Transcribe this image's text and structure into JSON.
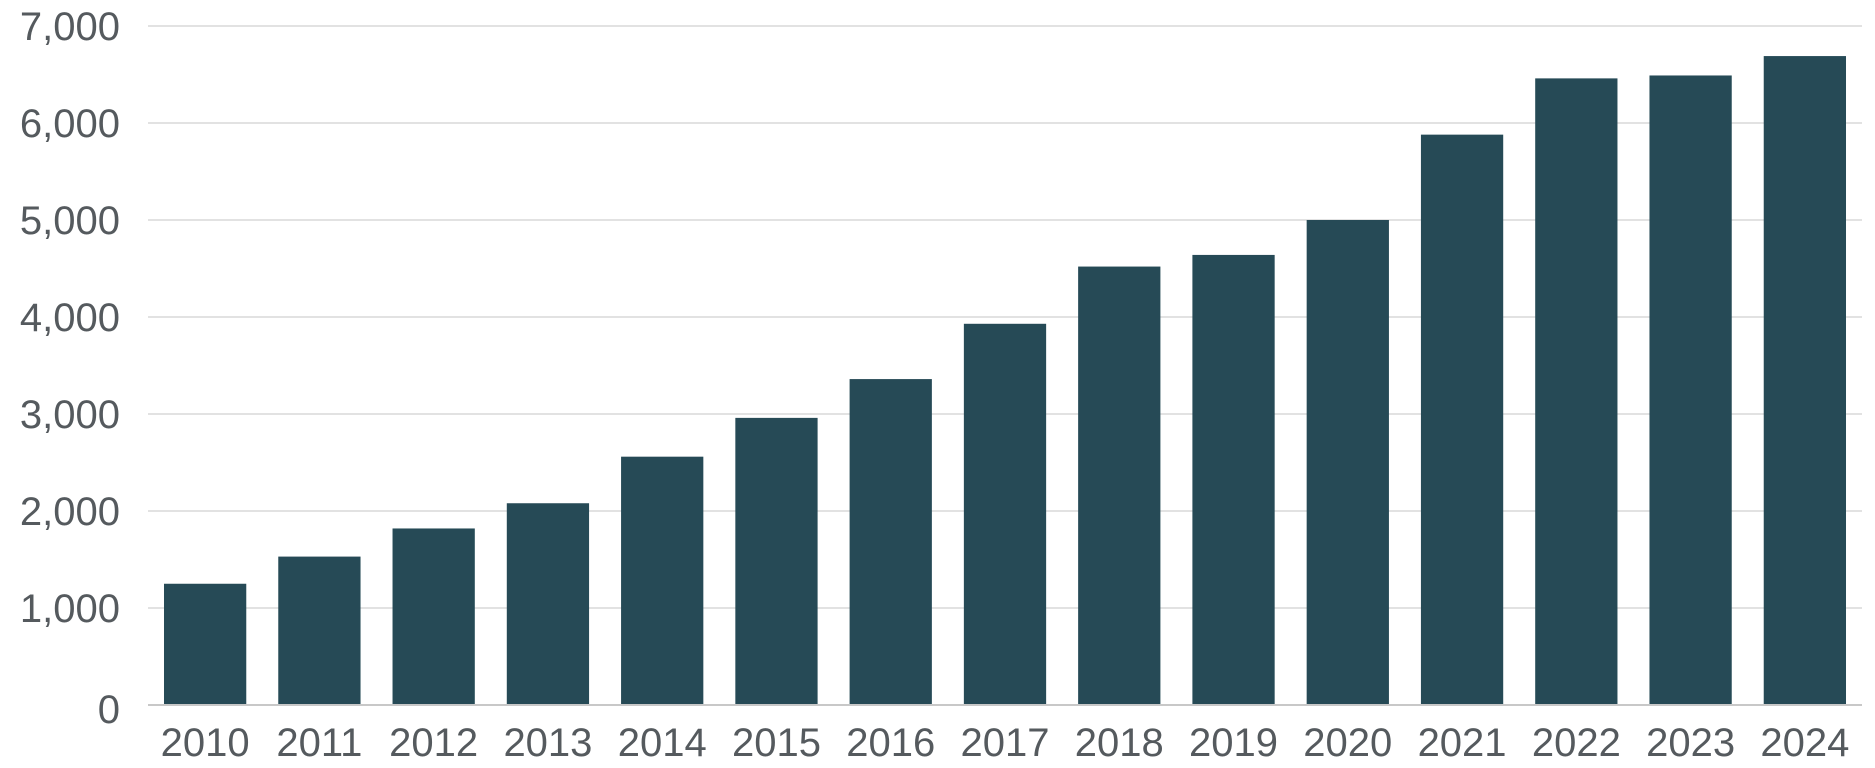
{
  "chart_data": {
    "type": "bar",
    "title": "",
    "xlabel": "",
    "ylabel": "",
    "categories": [
      "2010",
      "2011",
      "2012",
      "2013",
      "2014",
      "2015",
      "2016",
      "2017",
      "2018",
      "2019",
      "2020",
      "2021",
      "2022",
      "2023",
      "2024"
    ],
    "values": [
      1250,
      1530,
      1820,
      2080,
      2560,
      2960,
      3360,
      3930,
      4520,
      4640,
      5000,
      5880,
      6460,
      6490,
      6690
    ],
    "ylim": [
      0,
      7000
    ],
    "yticks": [
      0,
      1000,
      2000,
      3000,
      4000,
      5000,
      6000,
      7000
    ],
    "ytick_labels": [
      "0",
      "1,000",
      "2,000",
      "3,000",
      "4,000",
      "5,000",
      "6,000",
      "7,000"
    ],
    "grid": true,
    "legend": "none",
    "bar_color": "#264a56"
  }
}
